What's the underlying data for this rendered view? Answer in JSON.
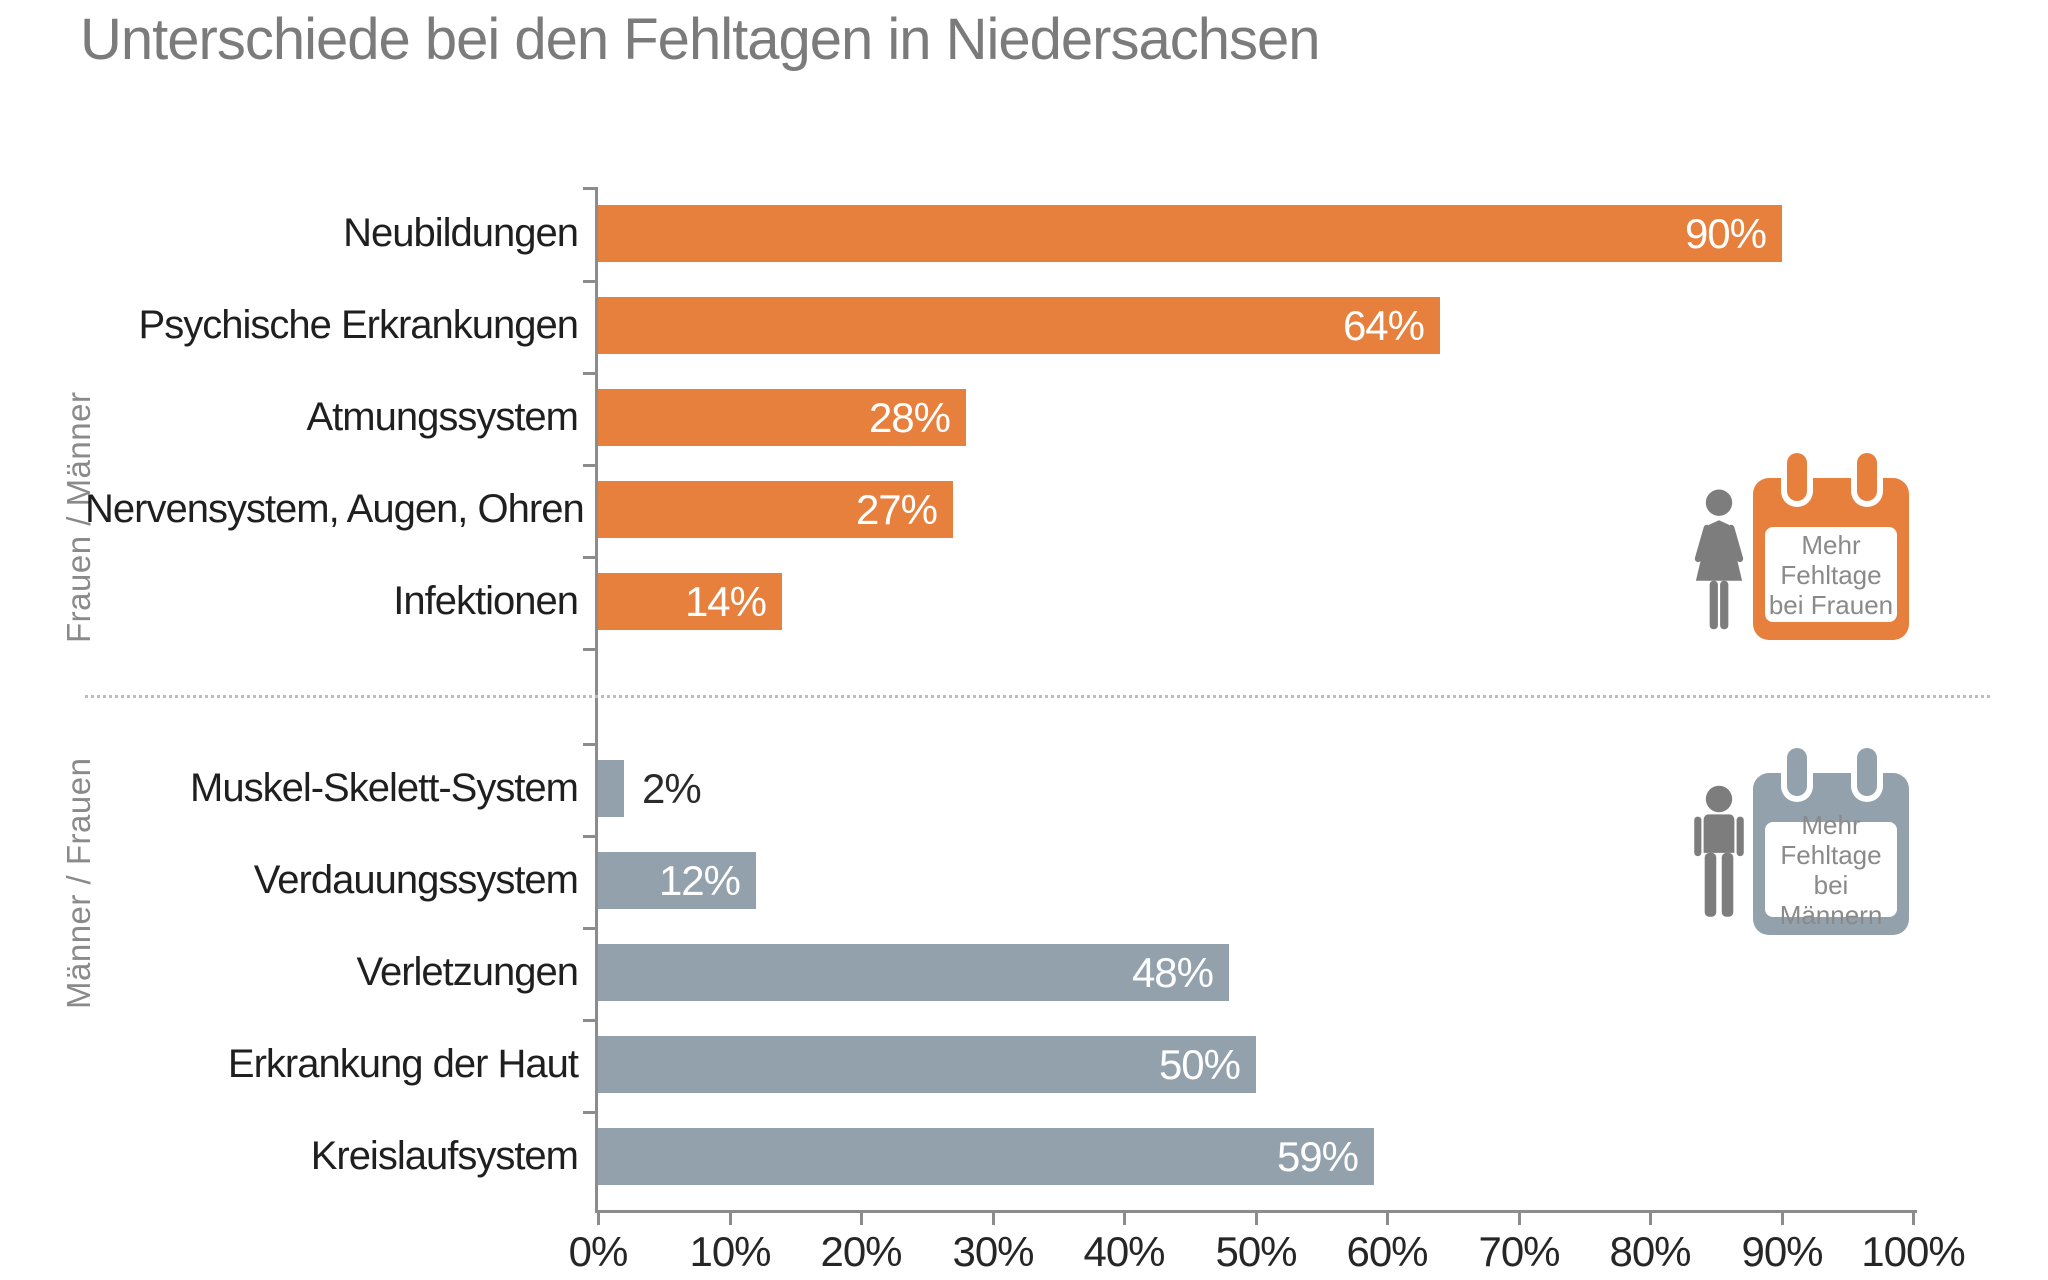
{
  "title": "Unterschiede bei den Fehltagen in Niedersachsen",
  "chart_data": {
    "type": "bar",
    "orientation": "horizontal",
    "title": "Unterschiede bei den Fehltagen in Niedersachsen",
    "xlabel": "",
    "ylabel": "",
    "value_unit": "%",
    "xlim": [
      0,
      100
    ],
    "grid": false,
    "x_ticks": [
      "0%",
      "10%",
      "20%",
      "30%",
      "40%",
      "50%",
      "60%",
      "70%",
      "80%",
      "90%",
      "100%"
    ],
    "groups": [
      {
        "section_label": "Frauen / Männer",
        "bar_color": "#E8803D",
        "categories": [
          "Neubildungen",
          "Psychische Erkrankungen",
          "Atmungssystem",
          "Nervensystem, Augen, Ohren",
          "Infektionen"
        ],
        "values": [
          90,
          64,
          28,
          27,
          14
        ],
        "value_labels": [
          "90%",
          "64%",
          "28%",
          "27%",
          "14%"
        ]
      },
      {
        "section_label": "Männer / Frauen",
        "bar_color": "#92A1AB",
        "categories": [
          "Muskel-Skelett-System",
          "Verdauungssystem",
          "Verletzungen",
          "Erkrankung der Haut",
          "Kreislaufsystem"
        ],
        "values": [
          2,
          12,
          48,
          50,
          59
        ],
        "value_labels": [
          "2%",
          "12%",
          "48%",
          "50%",
          "59%"
        ]
      }
    ],
    "legends": [
      {
        "icon": "woman-icon",
        "accent_color": "#E8803D",
        "note": "Mehr\nFehltage\nbei Frauen"
      },
      {
        "icon": "man-icon",
        "accent_color": "#92A1AB",
        "note": "Mehr\nFehltage\nbei Männern"
      }
    ],
    "colors": {
      "female_more_orange": "#E8803D",
      "male_more_gray": "#92A1AB",
      "figure_gray": "#7D7D7D",
      "axis_gray": "#8C8C8C",
      "label_dark": "#1F1F1F",
      "secondary_text_gray": "#8A8A8A"
    }
  }
}
